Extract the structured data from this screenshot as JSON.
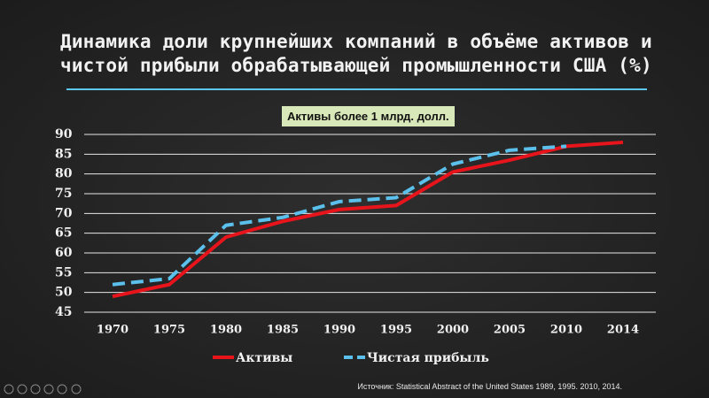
{
  "chart_data": {
    "type": "line",
    "title": "Динамика доли крупнейших компаний в объёме активов и чистой прибыли обрабатывающей промышленности США (%)",
    "subtitle": "Активы более 1 млрд. долл.",
    "source": "Источник: Statistical Abstract of the United States 1989, 1995. 2010, 2014.",
    "categories": [
      "1970",
      "1975",
      "1980",
      "1985",
      "1990",
      "1995",
      "2000",
      "2005",
      "2010",
      "2014"
    ],
    "series": [
      {
        "name": "Активы",
        "color": "#e8141c",
        "dash": false,
        "values": [
          49,
          52,
          64,
          68,
          71,
          72,
          80.5,
          83.5,
          87,
          88
        ]
      },
      {
        "name": "Чистая прибыль",
        "color": "#5bc0eb",
        "dash": true,
        "values": [
          52,
          53.5,
          67,
          69,
          73,
          74,
          82.5,
          86,
          87,
          null
        ]
      }
    ],
    "ylim": [
      45,
      90
    ],
    "yticks": [
      45,
      50,
      55,
      60,
      65,
      70,
      75,
      80,
      85,
      90
    ],
    "grid": true
  }
}
